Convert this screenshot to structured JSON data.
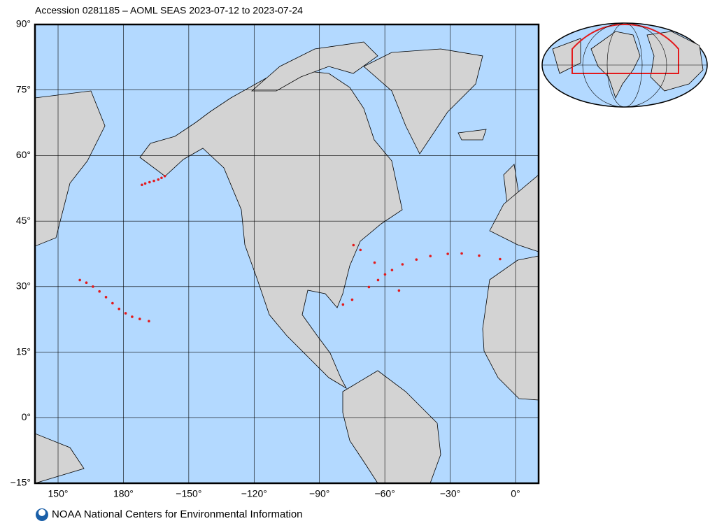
{
  "chart_data": {
    "type": "map",
    "title": "Accession 0281185 – AOML SEAS 2023-07-12 to 2023-07-24",
    "xlim": [
      139.4,
      10.6
    ],
    "ylim": [
      -15,
      90
    ],
    "xticks": [
      {
        "value": 150,
        "label": "150°"
      },
      {
        "value": 180,
        "label": "180°"
      },
      {
        "value": -150,
        "label": "−150°"
      },
      {
        "value": -120,
        "label": "−120°"
      },
      {
        "value": -90,
        "label": "−90°"
      },
      {
        "value": -60,
        "label": "−60°"
      },
      {
        "value": -30,
        "label": "−30°"
      },
      {
        "value": 0,
        "label": "0°"
      }
    ],
    "yticks": [
      {
        "value": 90,
        "label": "90°"
      },
      {
        "value": 75,
        "label": "75°"
      },
      {
        "value": 60,
        "label": "60°"
      },
      {
        "value": 45,
        "label": "45°"
      },
      {
        "value": 30,
        "label": "30°"
      },
      {
        "value": 15,
        "label": "15°"
      },
      {
        "value": 0,
        "label": "0°"
      },
      {
        "value": -15,
        "label": "−15°"
      }
    ],
    "grid": true,
    "color": "#e31a1c",
    "tracks": [
      {
        "lon": [
          160,
          163,
          166,
          169,
          172,
          175,
          178,
          -179,
          -176,
          -172.5,
          -168.3
        ],
        "lat": [
          31.5,
          30.9,
          30.0,
          28.9,
          27.6,
          26.2,
          24.9,
          23.9,
          23.1,
          22.6,
          22.1
        ]
      },
      {
        "lon": [
          -171.5,
          -170,
          -168,
          -166,
          -164,
          -162.5,
          -161
        ],
        "lat": [
          53.3,
          53.6,
          53.9,
          54.2,
          54.5,
          54.9,
          55.3
        ]
      },
      {
        "lon": [
          -67.3,
          -63.1,
          -59.9,
          -56.7,
          -51.9,
          -45.5,
          -39.1,
          -31.1,
          -24.7,
          -16.7,
          -7.1
        ],
        "lat": [
          29.9,
          31.5,
          32.8,
          33.8,
          35.1,
          36.2,
          37.0,
          37.5,
          37.6,
          37.1,
          36.3
        ]
      },
      {
        "lon": [
          -74.4,
          -71.2,
          -64.7,
          -53.5,
          -75,
          -79.2
        ],
        "lat": [
          39.5,
          38.4,
          35.5,
          29.1,
          27,
          25.9
        ]
      }
    ]
  },
  "footer": "NOAA National Centers for Environmental Information"
}
